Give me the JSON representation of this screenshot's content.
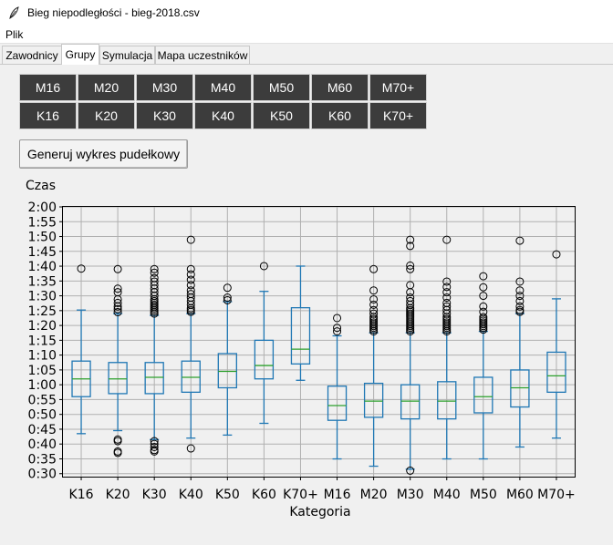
{
  "window": {
    "title": "Bieg niepodległości - bieg-2018.csv"
  },
  "menu": {
    "file_label": "Plik"
  },
  "tabs": [
    {
      "label": "Zawodnicy"
    },
    {
      "label": "Grupy"
    },
    {
      "label": "Symulacja"
    },
    {
      "label": "Mapa uczestników"
    }
  ],
  "category_buttons": {
    "row1": [
      "M16",
      "M20",
      "M30",
      "M40",
      "M50",
      "M60",
      "M70+"
    ],
    "row2": [
      "K16",
      "K20",
      "K30",
      "K40",
      "K50",
      "K60",
      "K70+"
    ]
  },
  "generate_button": {
    "label": "Generuj wykres pudełkowy"
  },
  "colors": {
    "box": "#1f77b4",
    "median": "#2ca02c",
    "button_dark": "#3c3c3c"
  },
  "chart_data": {
    "type": "boxplot",
    "ylabel": "Czas",
    "xlabel": "Kategoria",
    "ylim": [
      0.4833,
      2.0
    ],
    "yticks": [
      "0:30",
      "0:35",
      "0:40",
      "0:45",
      "0:50",
      "0:55",
      "1:00",
      "1:05",
      "1:10",
      "1:15",
      "1:20",
      "1:25",
      "1:30",
      "1:35",
      "1:40",
      "1:45",
      "1:50",
      "1:55",
      "2:00"
    ],
    "ytick_values": [
      0.5,
      0.5833,
      0.6667,
      0.75,
      0.8333,
      0.9167,
      1.0,
      1.0833,
      1.1667,
      1.25,
      1.3333,
      1.4167,
      1.5,
      1.5833,
      1.6667,
      1.75,
      1.8333,
      1.9167,
      2.0
    ],
    "grid": true,
    "categories": [
      "K16",
      "K20",
      "K30",
      "K40",
      "K50",
      "K60",
      "K70+",
      "M16",
      "M20",
      "M30",
      "M40",
      "M50",
      "M60",
      "M70+"
    ],
    "boxes": [
      {
        "whislo": 0.725,
        "q1": 0.933,
        "med": 1.033,
        "q3": 1.133,
        "whishi": 1.42,
        "fliers": [
          1.653
        ]
      },
      {
        "whislo": 0.742,
        "q1": 0.95,
        "med": 1.033,
        "q3": 1.125,
        "whishi": 1.4,
        "fliers": [
          0.692,
          0.683,
          0.617,
          0.625,
          1.408,
          1.425,
          1.44,
          1.46,
          1.48,
          1.52,
          1.54,
          1.65
        ]
      },
      {
        "whislo": 0.692,
        "q1": 0.95,
        "med": 1.042,
        "q3": 1.125,
        "whishi": 1.39,
        "fliers": [
          0.683,
          0.667,
          0.65,
          0.633,
          0.625,
          1.4,
          1.41,
          1.42,
          1.43,
          1.44,
          1.45,
          1.46,
          1.47,
          1.48,
          1.5,
          1.52,
          1.54,
          1.56,
          1.58,
          1.6,
          1.63,
          1.65
        ]
      },
      {
        "whislo": 0.7,
        "q1": 0.958,
        "med": 1.042,
        "q3": 1.133,
        "whishi": 1.4,
        "fliers": [
          0.642,
          1.41,
          1.42,
          1.43,
          1.45,
          1.47,
          1.49,
          1.51,
          1.53,
          1.56,
          1.59,
          1.62,
          1.65,
          1.815
        ]
      },
      {
        "whislo": 0.717,
        "q1": 0.983,
        "med": 1.075,
        "q3": 1.175,
        "whishi": 1.467,
        "fliers": [
          1.475,
          1.49,
          1.545
        ]
      },
      {
        "whislo": 0.783,
        "q1": 1.033,
        "med": 1.108,
        "q3": 1.25,
        "whishi": 1.525,
        "fliers": [
          1.667
        ]
      },
      {
        "whislo": 1.025,
        "q1": 1.117,
        "med": 1.2,
        "q3": 1.433,
        "whishi": 1.667,
        "fliers": []
      },
      {
        "whislo": 0.583,
        "q1": 0.8,
        "med": 0.883,
        "q3": 0.992,
        "whishi": 1.275,
        "fliers": [
          1.3,
          1.32,
          1.375
        ]
      },
      {
        "whislo": 0.542,
        "q1": 0.817,
        "med": 0.908,
        "q3": 1.008,
        "whishi": 1.292,
        "fliers": [
          1.3,
          1.31,
          1.32,
          1.33,
          1.34,
          1.35,
          1.36,
          1.37,
          1.38,
          1.4,
          1.42,
          1.45,
          1.48,
          1.53,
          1.65
        ]
      },
      {
        "whislo": 0.525,
        "q1": 0.808,
        "med": 0.908,
        "q3": 1.0,
        "whishi": 1.292,
        "fliers": [
          0.517,
          1.3,
          1.31,
          1.32,
          1.33,
          1.34,
          1.35,
          1.36,
          1.37,
          1.38,
          1.39,
          1.4,
          1.41,
          1.42,
          1.43,
          1.45,
          1.47,
          1.49,
          1.52,
          1.56,
          1.65,
          1.67,
          1.78,
          1.815
        ]
      },
      {
        "whislo": 0.583,
        "q1": 0.808,
        "med": 0.908,
        "q3": 1.017,
        "whishi": 1.292,
        "fliers": [
          1.3,
          1.31,
          1.32,
          1.33,
          1.34,
          1.35,
          1.36,
          1.37,
          1.38,
          1.4,
          1.42,
          1.44,
          1.46,
          1.49,
          1.52,
          1.55,
          1.58,
          1.815
        ]
      },
      {
        "whislo": 0.583,
        "q1": 0.842,
        "med": 0.933,
        "q3": 1.042,
        "whishi": 1.3,
        "fliers": [
          1.31,
          1.32,
          1.33,
          1.34,
          1.35,
          1.36,
          1.37,
          1.38,
          1.41,
          1.44,
          1.5,
          1.548,
          1.61
        ]
      },
      {
        "whislo": 0.65,
        "q1": 0.875,
        "med": 0.983,
        "q3": 1.083,
        "whishi": 1.4,
        "fliers": [
          1.41,
          1.42,
          1.44,
          1.47,
          1.5,
          1.53,
          1.58,
          1.81
        ]
      },
      {
        "whislo": 0.7,
        "q1": 0.958,
        "med": 1.05,
        "q3": 1.183,
        "whishi": 1.483,
        "fliers": [
          1.733
        ]
      }
    ]
  }
}
